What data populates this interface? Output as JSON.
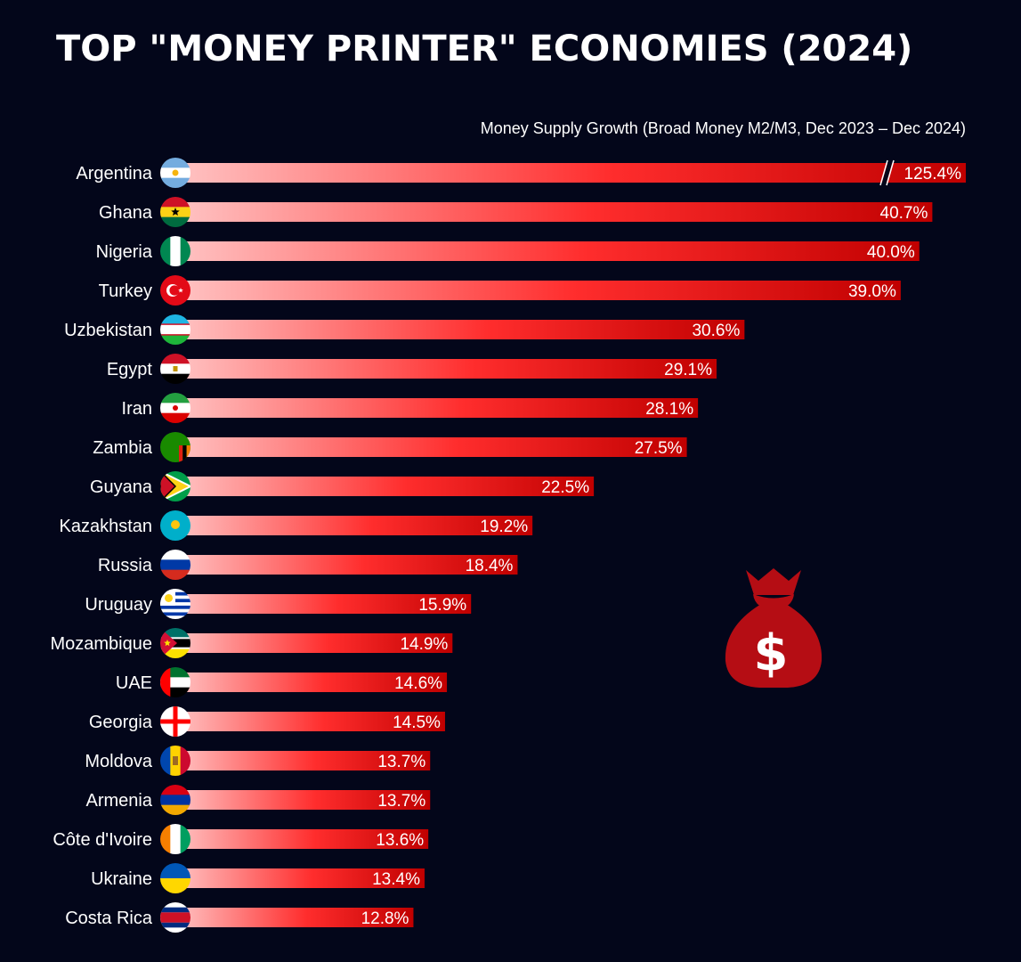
{
  "chart_data": {
    "type": "bar",
    "orientation": "horizontal",
    "title": "TOP \"MONEY PRINTER\" ECONOMIES (2024)",
    "subtitle": "Money Supply Growth (Broad Money M2/M3, Dec 2023 – Dec 2024)",
    "categories": [
      "Argentina",
      "Ghana",
      "Nigeria",
      "Turkey",
      "Uzbekistan",
      "Egypt",
      "Iran",
      "Zambia",
      "Guyana",
      "Kazakhstan",
      "Russia",
      "Uruguay",
      "Mozambique",
      "UAE",
      "Georgia",
      "Moldova",
      "Armenia",
      "Côte d'Ivoire",
      "Ukraine",
      "Costa Rica"
    ],
    "values": [
      125.4,
      40.7,
      40.0,
      39.0,
      30.6,
      29.1,
      28.1,
      27.5,
      22.5,
      19.2,
      18.4,
      15.9,
      14.9,
      14.6,
      14.5,
      13.7,
      13.7,
      13.6,
      13.4,
      12.8
    ],
    "value_labels": [
      "125.4%",
      "40.7%",
      "40.0%",
      "39.0%",
      "30.6%",
      "29.1%",
      "28.1%",
      "27.5%",
      "22.5%",
      "19.2%",
      "18.4%",
      "15.9%",
      "14.9%",
      "14.6%",
      "14.5%",
      "13.7%",
      "13.7%",
      "13.6%",
      "13.4%",
      "12.8%"
    ],
    "flag_icons": [
      "argentina-flag-icon",
      "ghana-flag-icon",
      "nigeria-flag-icon",
      "turkey-flag-icon",
      "uzbekistan-flag-icon",
      "egypt-flag-icon",
      "iran-flag-icon",
      "zambia-flag-icon",
      "guyana-flag-icon",
      "kazakhstan-flag-icon",
      "russia-flag-icon",
      "uruguay-flag-icon",
      "mozambique-flag-icon",
      "uae-flag-icon",
      "georgia-flag-icon",
      "moldova-flag-icon",
      "armenia-flag-icon",
      "cote-divoire-flag-icon",
      "ukraine-flag-icon",
      "costa-rica-flag-icon"
    ],
    "broken_axis_categories": [
      "Argentina"
    ],
    "xlim": [
      0,
      42.5
    ],
    "grid": false,
    "legend": "none",
    "colors": {
      "background": "#03061a",
      "bar_start": "#ffc4c4",
      "bar_mid": "#ff2d2d",
      "bar_end": "#c00000",
      "text": "#ffffff",
      "money_bag": "#b50d14"
    }
  },
  "decoration": {
    "icon": "money-bag-icon",
    "symbol": "$"
  }
}
